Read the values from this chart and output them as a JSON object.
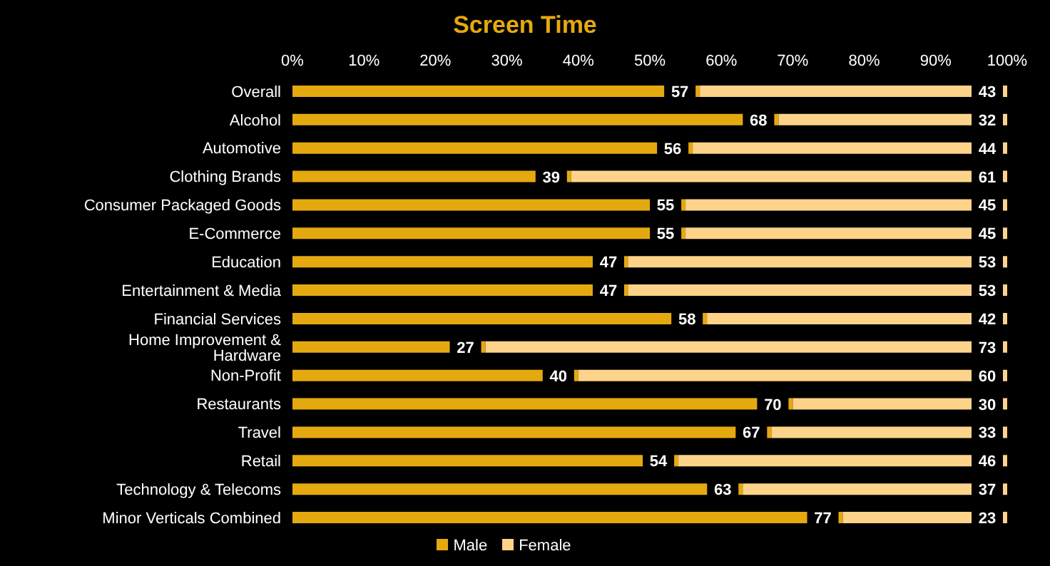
{
  "chart_data": {
    "type": "bar",
    "orientation": "horizontal",
    "stacked": true,
    "title": "Screen Time",
    "categories": [
      "Overall",
      "Alcohol",
      "Automotive",
      "Clothing Brands",
      "Consumer Packaged Goods",
      "E-Commerce",
      "Education",
      "Entertainment & Media",
      "Financial Services",
      "Home Improvement & Hardware",
      "Non-Profit",
      "Restaurants",
      "Travel",
      "Retail",
      "Technology & Telecoms",
      "Minor Verticals Combined"
    ],
    "series": [
      {
        "name": "Male",
        "color": "#e5a910",
        "values": [
          57,
          68,
          56,
          39,
          55,
          55,
          47,
          47,
          58,
          27,
          40,
          70,
          67,
          54,
          63,
          77
        ]
      },
      {
        "name": "Female",
        "color": "#fdd38a",
        "values": [
          43,
          32,
          44,
          61,
          45,
          45,
          53,
          53,
          42,
          73,
          60,
          30,
          33,
          46,
          37,
          23
        ]
      }
    ],
    "xlim": [
      0,
      100
    ],
    "xticks": [
      {
        "value": 0,
        "label": "0%"
      },
      {
        "value": 10,
        "label": "10%"
      },
      {
        "value": 20,
        "label": "20%"
      },
      {
        "value": 30,
        "label": "30%"
      },
      {
        "value": 40,
        "label": "40%"
      },
      {
        "value": 50,
        "label": "50%"
      },
      {
        "value": 60,
        "label": "60%"
      },
      {
        "value": 70,
        "label": "70%"
      },
      {
        "value": 80,
        "label": "80%"
      },
      {
        "value": 90,
        "label": "90%"
      },
      {
        "value": 100,
        "label": "100%"
      }
    ],
    "grid": false,
    "data_labels": true,
    "legend": "bottom"
  }
}
